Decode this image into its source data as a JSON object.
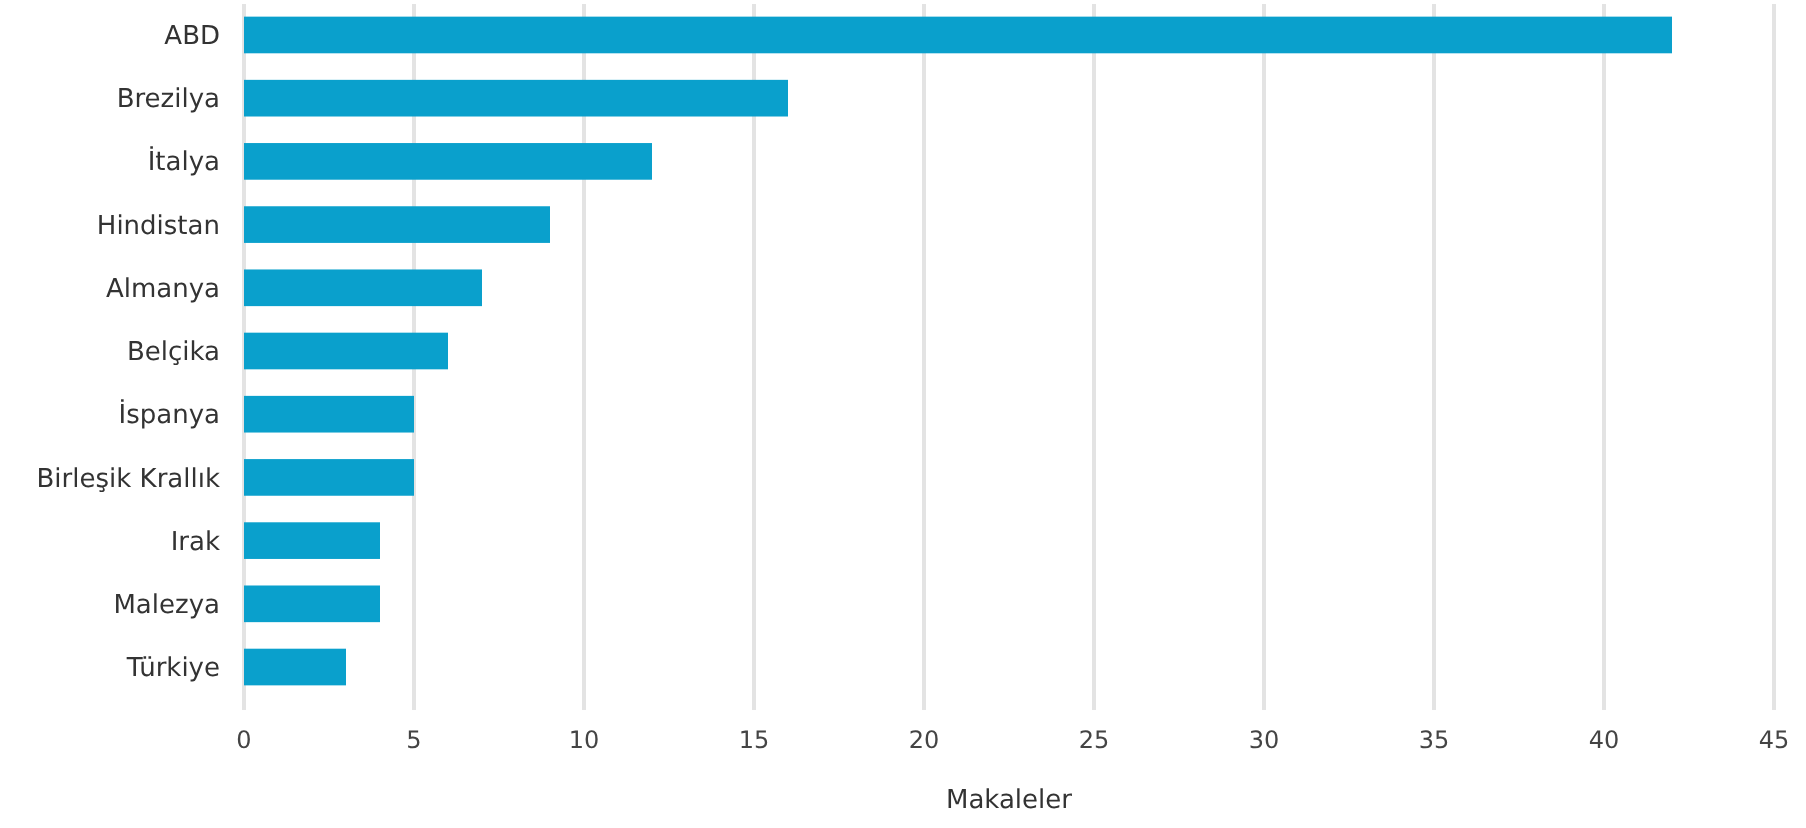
{
  "chart_data": {
    "type": "bar",
    "orientation": "horizontal",
    "xlabel": "Makaleler",
    "categories": [
      "ABD",
      "Brezilya",
      "İtalya",
      "Hindistan",
      "Almanya",
      "Belçika",
      "İspanya",
      "Birleşik Krallık",
      "Irak",
      "Malezya",
      "Türkiye"
    ],
    "values": [
      42,
      16,
      12,
      9,
      7,
      6,
      5,
      5,
      4,
      4,
      3
    ],
    "color": "#0aa0cc",
    "xlim": [
      0,
      45
    ],
    "xticks": [
      0,
      5,
      10,
      15,
      20,
      25,
      30,
      35,
      40,
      45
    ],
    "grid": "x"
  }
}
